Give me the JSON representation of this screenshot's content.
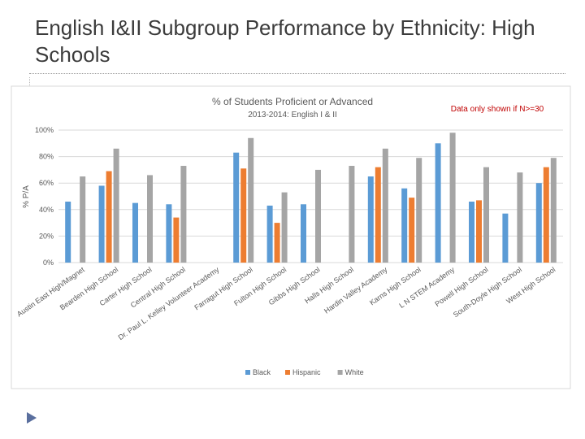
{
  "slide": {
    "title": "English I&II Subgroup Performance by Ethnicity: High Schools"
  },
  "chart_data": {
    "type": "bar",
    "title": "% of Students Proficient or Advanced",
    "subtitle": "2013-2014:  English I & II",
    "note": "Data only shown if N>=30",
    "ylabel": "% P/A",
    "xlabel": "",
    "ylim": [
      0,
      100
    ],
    "y_ticks": [
      "0%",
      "20%",
      "40%",
      "60%",
      "80%",
      "100%"
    ],
    "grid": true,
    "legend_position": "bottom",
    "categories": [
      "Austin East High/Magnet",
      "Bearden High School",
      "Carter High School",
      "Central High School",
      "Dr. Paul L. Kelley Volunteer Academy",
      "Farragut High School",
      "Fulton High School",
      "Gibbs High School",
      "Halls High School",
      "Hardin Valley Academy",
      "Karns High School",
      "L N STEM Academy",
      "Powell High School",
      "South-Doyle High School",
      "West High School"
    ],
    "series": [
      {
        "name": "Black",
        "color": "#5b9bd5",
        "values": [
          46,
          58,
          45,
          44,
          null,
          83,
          43,
          44,
          null,
          65,
          56,
          90,
          46,
          37,
          60
        ]
      },
      {
        "name": "Hispanic",
        "color": "#ed7d31",
        "values": [
          null,
          69,
          null,
          34,
          null,
          71,
          30,
          null,
          null,
          72,
          49,
          null,
          47,
          null,
          72
        ]
      },
      {
        "name": "White",
        "color": "#a5a5a5",
        "values": [
          65,
          86,
          66,
          73,
          null,
          94,
          53,
          70,
          73,
          86,
          79,
          98,
          72,
          68,
          79
        ]
      }
    ]
  }
}
